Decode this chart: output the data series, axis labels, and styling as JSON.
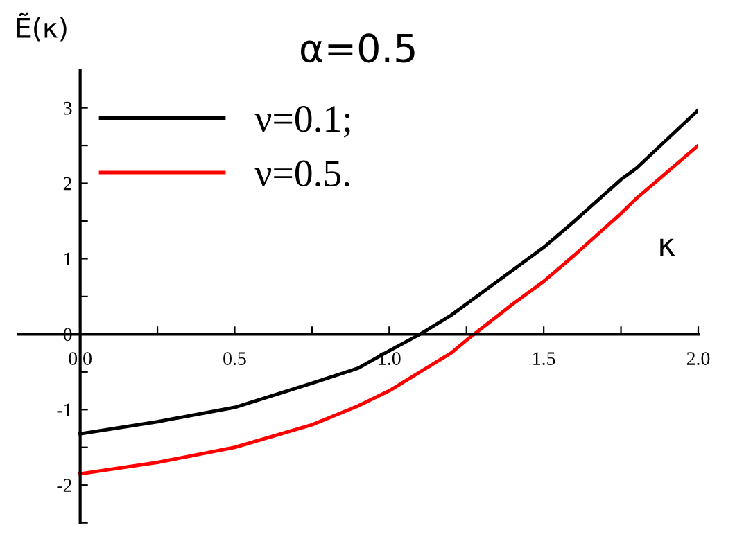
{
  "chart_data": {
    "type": "line",
    "title": "α=0.5",
    "xlabel": "κ",
    "ylabel": "Ẽ(κ)",
    "x": [
      0,
      0.25,
      0.5,
      0.75,
      0.9,
      1.0,
      1.1,
      1.2,
      1.25,
      1.4,
      1.5,
      1.6,
      1.75,
      1.8,
      2.0
    ],
    "series": [
      {
        "name": "ν=0.1;",
        "color": "#000000",
        "values": [
          -1.32,
          -1.16,
          -0.97,
          -0.65,
          -0.45,
          -0.22,
          0,
          0.25,
          0.4,
          0.85,
          1.15,
          1.5,
          2.05,
          2.2,
          2.97
        ]
      },
      {
        "name": "ν=0.5.",
        "color": "#ff0000",
        "values": [
          -1.85,
          -1.7,
          -1.5,
          -1.2,
          -0.95,
          -0.75,
          -0.5,
          -0.25,
          -0.08,
          0.4,
          0.7,
          1.05,
          1.6,
          1.8,
          2.5
        ]
      }
    ],
    "xlim": [
      -0.2,
      2.0
    ],
    "ylim": [
      -2.5,
      3.5
    ],
    "xticks": [
      {
        "value": 0,
        "label": "0.0"
      },
      {
        "value": 0.25,
        "label": null
      },
      {
        "value": 0.5,
        "label": "0.5"
      },
      {
        "value": 0.75,
        "label": null
      },
      {
        "value": 1.0,
        "label": "1.0"
      },
      {
        "value": 1.25,
        "label": null
      },
      {
        "value": 1.5,
        "label": "1.5"
      },
      {
        "value": 1.75,
        "label": null
      },
      {
        "value": 2.0,
        "label": "2.0"
      }
    ],
    "yticks": [
      {
        "value": -2.5,
        "label": null
      },
      -2,
      {
        "value": -1.5,
        "label": null
      },
      -1,
      {
        "value": -0.5,
        "label": null
      },
      0,
      {
        "value": 0.5,
        "label": null
      },
      1,
      {
        "value": 1.5,
        "label": null
      },
      2,
      {
        "value": 2.5,
        "label": null
      },
      3
    ],
    "legend": "top left",
    "grid": false,
    "marker": "none",
    "line_style": "solid"
  }
}
